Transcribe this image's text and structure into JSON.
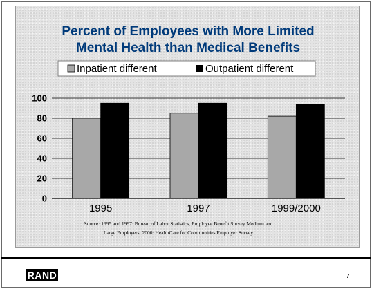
{
  "slide": {
    "brand": "RAND",
    "page_number": "7"
  },
  "chart_data": {
    "type": "bar",
    "title_lines": [
      "Percent of Employees with More Limited",
      "Mental Health than Medical Benefits"
    ],
    "categories": [
      "1995",
      "1997",
      "1999/2000"
    ],
    "series": [
      {
        "name": "Inpatient different",
        "values": [
          80,
          85,
          82
        ],
        "color": "#a8a8a8"
      },
      {
        "name": "Outpatient different",
        "values": [
          95,
          95,
          94
        ],
        "color": "#000000"
      }
    ],
    "ylim": [
      0,
      100
    ],
    "yticks": [
      0,
      20,
      40,
      60,
      80,
      100
    ],
    "grid": true,
    "legend_position": "top",
    "source_lines": [
      "Source: 1995 and 1997: Bureau of Labor Statistics, Employee Benefit Survey Medium and",
      "Large Employers; 2000: HealthCare for Communities Employer Survey"
    ]
  }
}
